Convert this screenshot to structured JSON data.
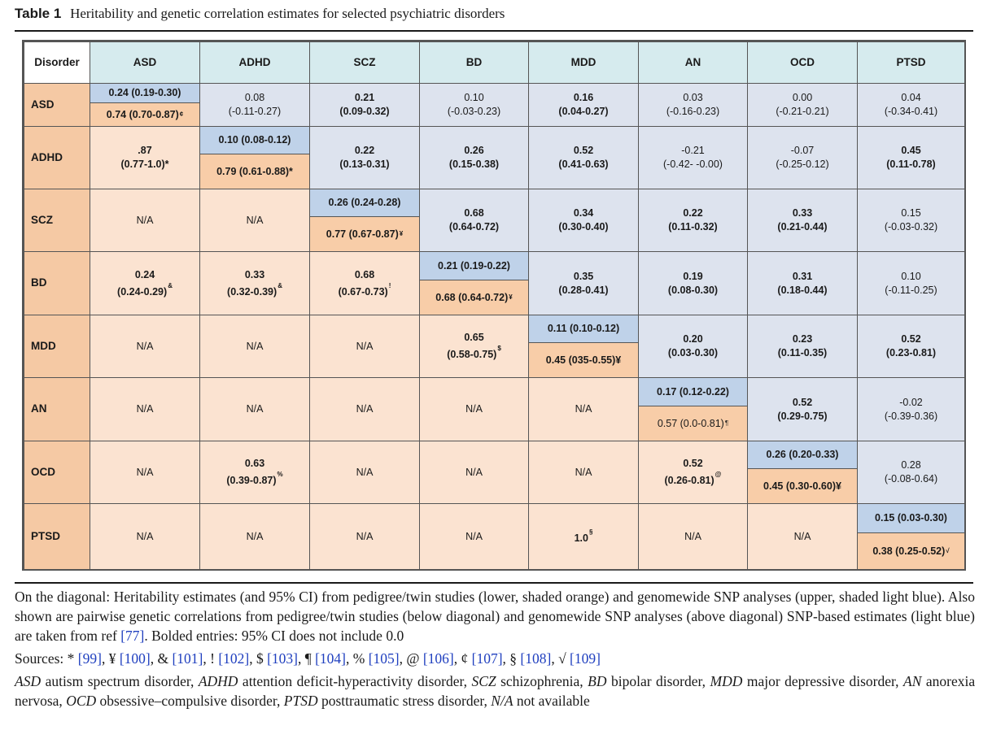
{
  "caption": {
    "label": "Table 1",
    "title": "Heritability and genetic correlation estimates for selected psychiatric disorders"
  },
  "table": {
    "corner": "Disorder",
    "columns": [
      "ASD",
      "ADHD",
      "SCZ",
      "BD",
      "MDD",
      "AN",
      "OCD",
      "PTSD"
    ],
    "rows": [
      {
        "label": "ASD",
        "cells": [
          {
            "type": "diag",
            "snp": "0.24 (0.19-0.30)",
            "twin": "0.74 (0.70-0.87)",
            "twin_fn": "¢",
            "twin_bold": true
          },
          {
            "type": "up",
            "l1": "0.08",
            "l2": "(-0.11-0.27)",
            "bold": false
          },
          {
            "type": "up",
            "l1": "0.21",
            "l2": "(0.09-0.32)",
            "bold": true
          },
          {
            "type": "up",
            "l1": "0.10",
            "l2": "(-0.03-0.23)",
            "bold": false
          },
          {
            "type": "up",
            "l1": "0.16",
            "l2": "(0.04-0.27)",
            "bold": true
          },
          {
            "type": "up",
            "l1": "0.03",
            "l2": "(-0.16-0.23)",
            "bold": false
          },
          {
            "type": "up",
            "l1": "0.00",
            "l2": "(-0.21-0.21)",
            "bold": false
          },
          {
            "type": "up",
            "l1": "0.04",
            "l2": "(-0.34-0.41)",
            "bold": false
          }
        ]
      },
      {
        "label": "ADHD",
        "cells": [
          {
            "type": "low",
            "l1": ".87",
            "l2": "(0.77-1.0)*",
            "bold": true
          },
          {
            "type": "diag",
            "snp": "0.10 (0.08-0.12)",
            "twin": "0.79 (0.61-0.88)*",
            "twin_fn": "",
            "twin_bold": true
          },
          {
            "type": "up",
            "l1": "0.22",
            "l2": "(0.13-0.31)",
            "bold": true
          },
          {
            "type": "up",
            "l1": "0.26",
            "l2": "(0.15-0.38)",
            "bold": true
          },
          {
            "type": "up",
            "l1": "0.52",
            "l2": "(0.41-0.63)",
            "bold": true
          },
          {
            "type": "up",
            "l1": "-0.21",
            "l2": "(-0.42- -0.00)",
            "bold": false
          },
          {
            "type": "up",
            "l1": "-0.07",
            "l2": "(-0.25-0.12)",
            "bold": false
          },
          {
            "type": "up",
            "l1": "0.45",
            "l2": "(0.11-0.78)",
            "bold": true
          }
        ]
      },
      {
        "label": "SCZ",
        "cells": [
          {
            "type": "low",
            "l1": "N/A",
            "l2": "",
            "bold": false
          },
          {
            "type": "low",
            "l1": "N/A",
            "l2": "",
            "bold": false
          },
          {
            "type": "diag",
            "snp": "0.26 (0.24-0.28)",
            "twin": "0.77 (0.67-0.87)",
            "twin_fn": "¥",
            "twin_bold": true
          },
          {
            "type": "up",
            "l1": "0.68",
            "l2": "(0.64-0.72)",
            "bold": true
          },
          {
            "type": "up",
            "l1": "0.34",
            "l2": "(0.30-0.40)",
            "bold": true
          },
          {
            "type": "up",
            "l1": "0.22",
            "l2": "(0.11-0.32)",
            "bold": true
          },
          {
            "type": "up",
            "l1": "0.33",
            "l2": "(0.21-0.44)",
            "bold": true
          },
          {
            "type": "up",
            "l1": "0.15",
            "l2": "(-0.03-0.32)",
            "bold": false
          }
        ]
      },
      {
        "label": "BD",
        "cells": [
          {
            "type": "low",
            "l1": "0.24",
            "l2": "(0.24-0.29)",
            "fn": "&",
            "bold": true
          },
          {
            "type": "low",
            "l1": "0.33",
            "l2": "(0.32-0.39)",
            "fn": "&",
            "bold": true
          },
          {
            "type": "low",
            "l1": "0.68",
            "l2": "(0.67-0.73)",
            "fn": "!",
            "bold": true
          },
          {
            "type": "diag",
            "snp": "0.21 (0.19-0.22)",
            "twin": "0.68 (0.64-0.72)",
            "twin_fn": "¥",
            "twin_bold": true
          },
          {
            "type": "up",
            "l1": "0.35",
            "l2": "(0.28-0.41)",
            "bold": true
          },
          {
            "type": "up",
            "l1": "0.19",
            "l2": "(0.08-0.30)",
            "bold": true
          },
          {
            "type": "up",
            "l1": "0.31",
            "l2": "(0.18-0.44)",
            "bold": true
          },
          {
            "type": "up",
            "l1": "0.10",
            "l2": "(-0.11-0.25)",
            "bold": false
          }
        ]
      },
      {
        "label": "MDD",
        "cells": [
          {
            "type": "low",
            "l1": "N/A",
            "l2": "",
            "bold": false
          },
          {
            "type": "low",
            "l1": "N/A",
            "l2": "",
            "bold": false
          },
          {
            "type": "low",
            "l1": "N/A",
            "l2": "",
            "bold": false
          },
          {
            "type": "low",
            "l1": "0.65",
            "l2": "(0.58-0.75)",
            "fn": "$",
            "bold": true
          },
          {
            "type": "diag",
            "snp": "0.11 (0.10-0.12)",
            "twin": "0.45 (035-0.55)¥",
            "twin_fn": "",
            "twin_bold": true
          },
          {
            "type": "up",
            "l1": "0.20",
            "l2": "(0.03-0.30)",
            "bold": true
          },
          {
            "type": "up",
            "l1": "0.23",
            "l2": "(0.11-0.35)",
            "bold": true
          },
          {
            "type": "up",
            "l1": "0.52",
            "l2": "(0.23-0.81)",
            "bold": true
          }
        ]
      },
      {
        "label": "AN",
        "cells": [
          {
            "type": "low",
            "l1": "N/A",
            "l2": "",
            "bold": false
          },
          {
            "type": "low",
            "l1": "N/A",
            "l2": "",
            "bold": false
          },
          {
            "type": "low",
            "l1": "N/A",
            "l2": "",
            "bold": false
          },
          {
            "type": "low",
            "l1": "N/A",
            "l2": "",
            "bold": false
          },
          {
            "type": "low",
            "l1": "N/A",
            "l2": "",
            "bold": false
          },
          {
            "type": "diag",
            "snp": "0.17 (0.12-0.22)",
            "twin": "0.57 (0.0-0.81)",
            "twin_fn": "¶",
            "twin_bold": false
          },
          {
            "type": "up",
            "l1": "0.52",
            "l2": "(0.29-0.75)",
            "bold": true
          },
          {
            "type": "up",
            "l1": "-0.02",
            "l2": "(-0.39-0.36)",
            "bold": false
          }
        ]
      },
      {
        "label": "OCD",
        "cells": [
          {
            "type": "low",
            "l1": "N/A",
            "l2": "",
            "bold": false
          },
          {
            "type": "low",
            "l1": "0.63",
            "l2": "(0.39-0.87)",
            "fn": "%",
            "bold": true
          },
          {
            "type": "low",
            "l1": "N/A",
            "l2": "",
            "bold": false
          },
          {
            "type": "low",
            "l1": "N/A",
            "l2": "",
            "bold": false
          },
          {
            "type": "low",
            "l1": "N/A",
            "l2": "",
            "bold": false
          },
          {
            "type": "low",
            "l1": "0.52",
            "l2": "(0.26-0.81)",
            "fn": "@",
            "bold": true
          },
          {
            "type": "diag",
            "snp": "0.26 (0.20-0.33)",
            "twin": "0.45 (0.30-0.60)¥",
            "twin_fn": "",
            "twin_bold": true
          },
          {
            "type": "up",
            "l1": "0.28",
            "l2": "(-0.08-0.64)",
            "bold": false
          }
        ]
      },
      {
        "label": "PTSD",
        "cells": [
          {
            "type": "low",
            "l1": "N/A",
            "l2": "",
            "bold": false
          },
          {
            "type": "low",
            "l1": "N/A",
            "l2": "",
            "bold": false
          },
          {
            "type": "low",
            "l1": "N/A",
            "l2": "",
            "bold": false
          },
          {
            "type": "low",
            "l1": "N/A",
            "l2": "",
            "bold": false
          },
          {
            "type": "low",
            "l1": "1.0",
            "l2": "",
            "fn": "§",
            "bold": true
          },
          {
            "type": "low",
            "l1": "N/A",
            "l2": "",
            "bold": false
          },
          {
            "type": "low",
            "l1": "N/A",
            "l2": "",
            "bold": false
          },
          {
            "type": "diag",
            "snp": "0.15 (0.03-0.30)",
            "twin": "0.38 (0.25-0.52)",
            "twin_fn": "√",
            "twin_bold": true
          }
        ]
      }
    ]
  },
  "notes": {
    "diagonal": "On the diagonal: Heritability estimates (and 95% CI) from pedigree/twin studies (lower, shaded orange) and genomewide SNP analyses (upper, shaded light blue). Also shown are pairwise genetic correlations from pedigree/twin studies (below diagonal) and genomewide SNP analyses (above diagonal) SNP-based estimates (light blue) are taken from ref",
    "diagonal_ref": "[77]",
    "diagonal_end": ". Bolded entries: 95% CI does not include 0.0",
    "sources_label": "Sources:",
    "sources": [
      {
        "sym": "*",
        "ref": "[99]"
      },
      {
        "sym": "¥",
        "ref": "[100]"
      },
      {
        "sym": "&",
        "ref": "[101]"
      },
      {
        "sym": "!",
        "ref": "[102]"
      },
      {
        "sym": "$",
        "ref": "[103]"
      },
      {
        "sym": "¶",
        "ref": "[104]"
      },
      {
        "sym": "%",
        "ref": "[105]"
      },
      {
        "sym": "@",
        "ref": "[106]"
      },
      {
        "sym": "¢",
        "ref": "[107]"
      },
      {
        "sym": "§",
        "ref": "[108]"
      },
      {
        "sym": "√",
        "ref": "[109]"
      }
    ],
    "abbreviations": [
      {
        "abbr": "ASD",
        "def": "autism spectrum disorder,"
      },
      {
        "abbr": "ADHD",
        "def": "attention deficit-hyperactivity disorder,"
      },
      {
        "abbr": "SCZ",
        "def": "schizophrenia,"
      },
      {
        "abbr": "BD",
        "def": "bipolar disorder,"
      },
      {
        "abbr": "MDD",
        "def": "major depressive disorder,"
      },
      {
        "abbr": "AN",
        "def": "anorexia nervosa,"
      },
      {
        "abbr": "OCD",
        "def": "obsessive–compulsive disorder,"
      },
      {
        "abbr": "PTSD",
        "def": "posttraumatic stress disorder,"
      },
      {
        "abbr": "N/A",
        "def": "not available"
      }
    ]
  }
}
